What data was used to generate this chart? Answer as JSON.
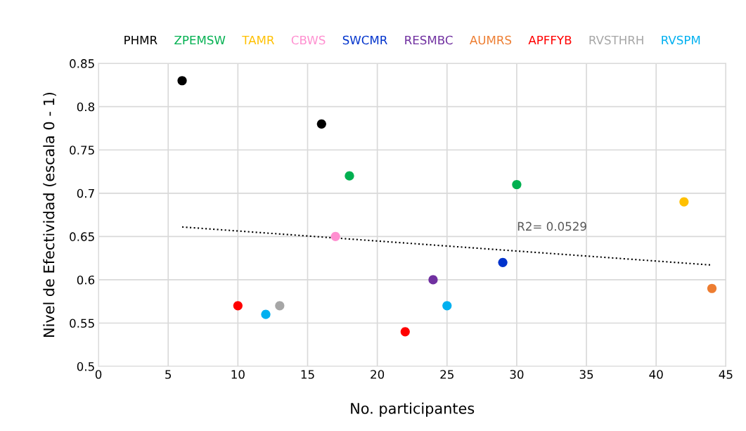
{
  "chart_data": {
    "type": "scatter",
    "xlabel": "No. participantes",
    "ylabel": "Nivel de Efectividad (escala 0 - 1)",
    "xlim": [
      0,
      45
    ],
    "xticks": [
      0,
      5,
      10,
      15,
      20,
      25,
      30,
      35,
      40,
      45
    ],
    "ylim": [
      0.5,
      0.85
    ],
    "yticks": [
      0.5,
      0.55,
      0.6,
      0.65,
      0.7,
      0.75,
      0.8,
      0.85
    ],
    "grid": true,
    "legend": "top",
    "marker": "circle",
    "series": [
      {
        "name": "PHMR",
        "color": "#000000",
        "x": [
          6,
          16
        ],
        "values": [
          0.83,
          0.78
        ]
      },
      {
        "name": "ZPEMSW",
        "color": "#00b050",
        "x": [
          18,
          30
        ],
        "values": [
          0.72,
          0.71
        ]
      },
      {
        "name": "TAMR",
        "color": "#ffc000",
        "x": [
          42
        ],
        "values": [
          0.69
        ]
      },
      {
        "name": "CBWS",
        "color": "#ff8fd0",
        "x": [
          17
        ],
        "values": [
          0.65
        ]
      },
      {
        "name": "SWCMR",
        "color": "#0033cc",
        "x": [
          29
        ],
        "values": [
          0.62
        ]
      },
      {
        "name": "RESMBC",
        "color": "#7030a0",
        "x": [
          24
        ],
        "values": [
          0.6
        ]
      },
      {
        "name": "AUMRS",
        "color": "#ed7d31",
        "x": [
          44
        ],
        "values": [
          0.59
        ]
      },
      {
        "name": "APFFYB",
        "color": "#ff0000",
        "x": [
          10,
          22
        ],
        "values": [
          0.57,
          0.54
        ]
      },
      {
        "name": "RVSTHRH",
        "color": "#a6a6a6",
        "x": [
          13
        ],
        "values": [
          0.57
        ]
      },
      {
        "name": "RVSPM",
        "color": "#00b0f0",
        "x": [
          12,
          25
        ],
        "values": [
          0.56,
          0.57
        ]
      },
      {
        "type": "line",
        "color": "#000000",
        "line_style": "dotted",
        "marker": "none",
        "x": [
          6,
          44
        ],
        "values": [
          0.661,
          0.617
        ]
      }
    ],
    "annotations": [
      "R2= 0.0529"
    ]
  }
}
